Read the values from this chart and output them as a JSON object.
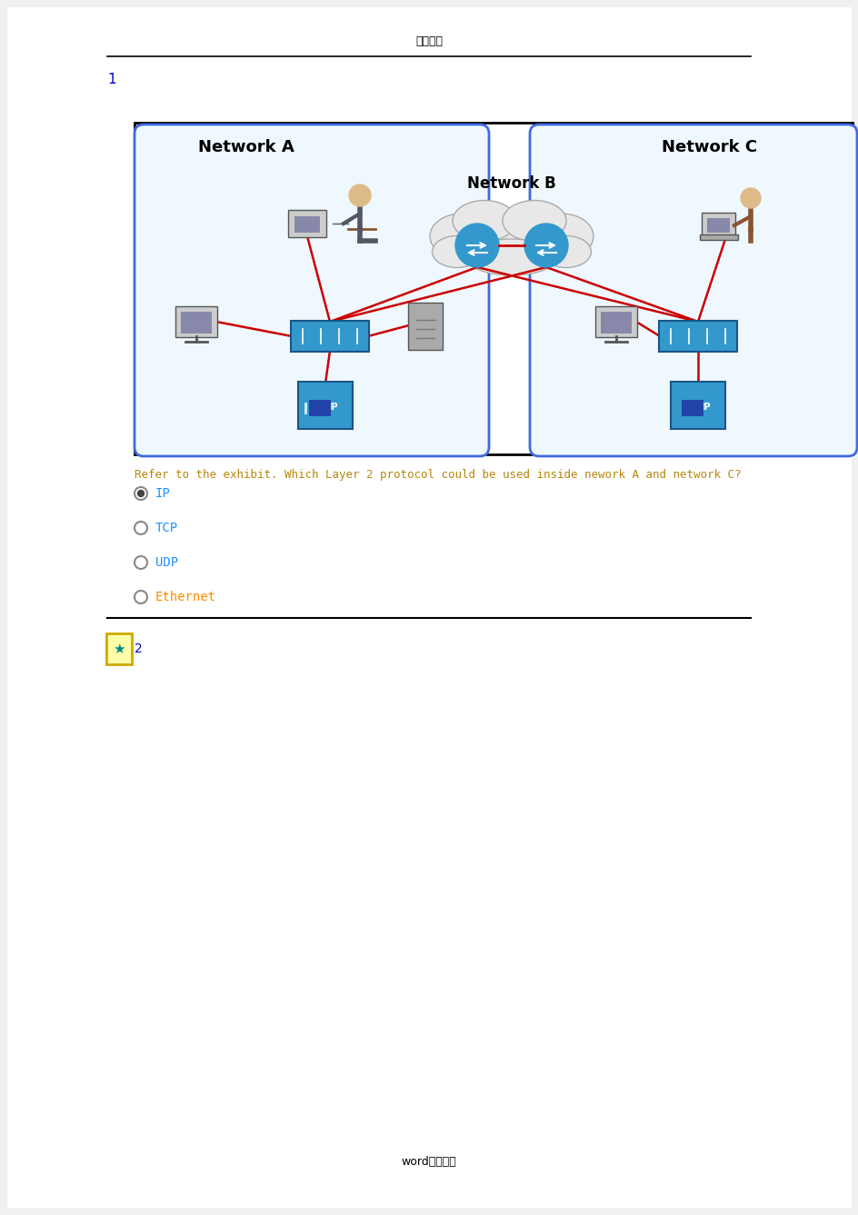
{
  "bg_color": "#f0f0f0",
  "page_bg": "#ffffff",
  "header_text": "专业资料",
  "header_color": "#000000",
  "question_num": "1",
  "question_color": "#0000cc",
  "question_text": "Refer to the exhibit. Which Layer 2 protocol could be used inside nework A and network C?",
  "question_text_color": "#b8860b",
  "options": [
    "IP",
    "TCP",
    "UDP",
    "Ethernet"
  ],
  "option_colors": [
    "#1e90ff",
    "#1e90ff",
    "#1e90ff",
    "#ff8c00"
  ],
  "selected_option": 0,
  "network_a_label": "Network A",
  "network_b_label": "Network B",
  "network_c_label": "Network C",
  "footer_text": "word完美格式",
  "footer_color": "#000000",
  "section2_label": "2",
  "red_line_color": "#cc0000",
  "switch_color": "#3399cc",
  "cloud_fill": "#e8e8e8",
  "cloud_edge": "#aaaaaa",
  "net_box_edge": "#4169e1",
  "net_box_fill": "#f0f8ff"
}
